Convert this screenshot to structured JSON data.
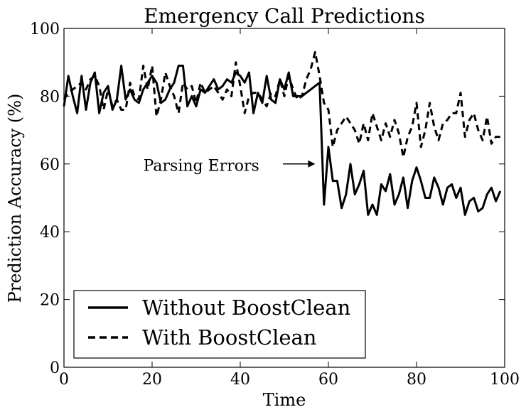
{
  "chart_data": {
    "type": "line",
    "title": "Emergency Call Predictions",
    "xlabel": "Time",
    "ylabel": "Prediction Accuracy (%)",
    "xlim": [
      0,
      100
    ],
    "ylim": [
      0,
      100
    ],
    "xticks": [
      "0",
      "20",
      "40",
      "60",
      "80",
      "100"
    ],
    "yticks": [
      "0",
      "20",
      "40",
      "60",
      "80",
      "100"
    ],
    "grid": false,
    "legend_position": "lower-left",
    "annotation": {
      "text": "Parsing Errors",
      "x_text": 18,
      "y_text": 58,
      "x_arrow": 57,
      "y_arrow": 60
    },
    "x": [
      0,
      1,
      2,
      3,
      4,
      5,
      6,
      7,
      8,
      9,
      10,
      11,
      12,
      13,
      14,
      15,
      16,
      17,
      18,
      19,
      20,
      21,
      22,
      23,
      24,
      25,
      26,
      27,
      28,
      29,
      30,
      31,
      32,
      33,
      34,
      35,
      36,
      37,
      38,
      39,
      40,
      41,
      42,
      43,
      44,
      45,
      46,
      47,
      48,
      49,
      50,
      51,
      52,
      53,
      54,
      55,
      56,
      57,
      58,
      59,
      60,
      61,
      62,
      63,
      64,
      65,
      66,
      67,
      68,
      69,
      70,
      71,
      72,
      73,
      74,
      75,
      76,
      77,
      78,
      79,
      80,
      81,
      82,
      83,
      84,
      85,
      86,
      87,
      88,
      89,
      90,
      91,
      92,
      93,
      94,
      95,
      96,
      97,
      98,
      99
    ],
    "series": [
      {
        "name": "Without BoostClean",
        "style": "solid",
        "color": "#000000",
        "values": [
          77,
          86,
          80,
          75,
          86,
          76,
          84,
          87,
          75,
          81,
          83,
          76,
          79,
          89,
          79,
          82,
          79,
          78,
          82,
          84,
          86,
          84,
          78,
          79,
          82,
          84,
          89,
          89,
          77,
          80,
          77,
          82,
          81,
          83,
          85,
          82,
          83,
          85,
          84,
          87,
          86,
          84,
          87,
          75,
          81,
          78,
          86,
          79,
          78,
          85,
          82,
          87,
          80,
          80,
          80,
          81,
          82,
          83,
          84,
          48,
          65,
          55,
          55,
          47,
          51,
          60,
          51,
          54,
          58,
          45,
          48,
          45,
          54,
          52,
          57,
          48,
          51,
          56,
          47,
          55,
          59,
          55,
          50,
          50,
          56,
          53,
          48,
          53,
          54,
          50,
          53,
          45,
          49,
          50,
          46,
          47,
          51,
          53,
          49,
          52
        ]
      },
      {
        "name": "With BoostClean",
        "style": "dashed",
        "color": "#000000",
        "values": [
          79,
          81,
          82,
          83,
          84,
          82,
          85,
          86,
          83,
          76,
          82,
          77,
          79,
          76,
          76,
          84,
          80,
          79,
          89,
          82,
          89,
          74,
          79,
          87,
          83,
          80,
          75,
          84,
          82,
          83,
          78,
          84,
          81,
          82,
          83,
          81,
          79,
          82,
          80,
          90,
          83,
          75,
          80,
          81,
          81,
          79,
          77,
          81,
          80,
          85,
          80,
          86,
          82,
          79,
          80,
          85,
          88,
          93,
          86,
          78,
          76,
          65,
          70,
          72,
          74,
          72,
          70,
          66,
          72,
          67,
          75,
          71,
          67,
          72,
          68,
          73,
          69,
          62,
          68,
          71,
          78,
          65,
          70,
          78,
          71,
          67,
          72,
          73,
          75,
          75,
          81,
          68,
          73,
          75,
          70,
          67,
          74,
          66,
          68,
          68
        ]
      }
    ]
  }
}
